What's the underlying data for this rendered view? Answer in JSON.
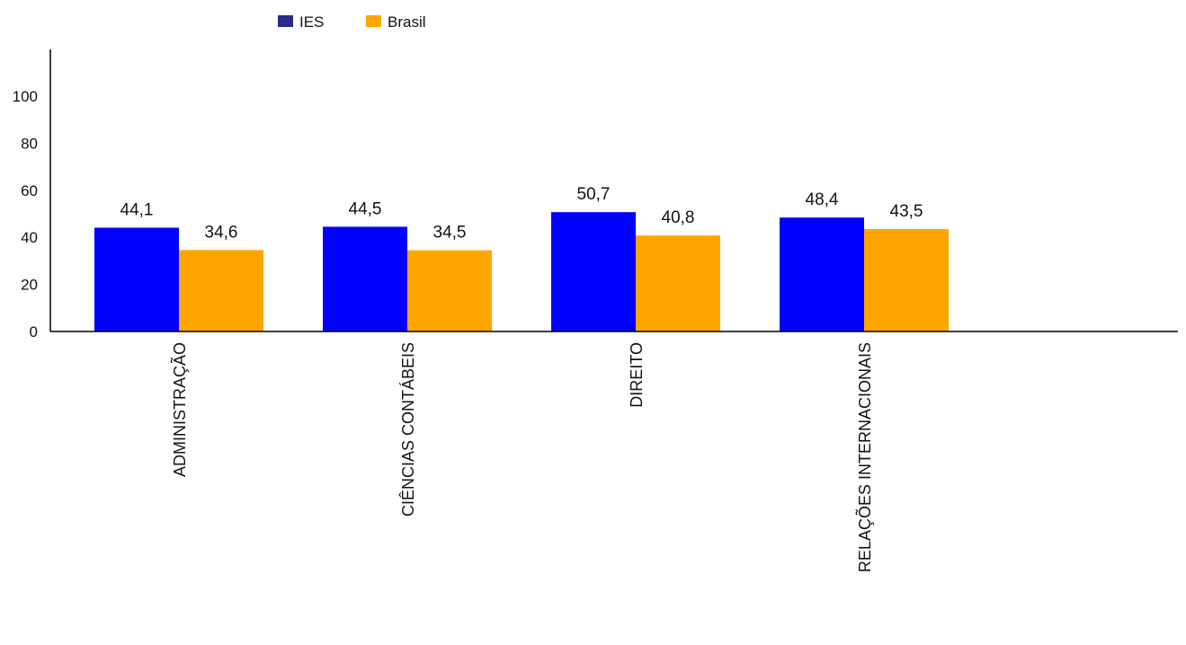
{
  "chart_data": {
    "type": "bar",
    "categories": [
      "ADMINISTRAÇÃO",
      "CIÊNCIAS CONTÁBEIS",
      "DIREITO",
      "RELAÇÕES INTERNACIONAIS"
    ],
    "series": [
      {
        "name": "IES",
        "values": [
          44.1,
          44.5,
          50.7,
          48.4
        ],
        "labels": [
          "44,1",
          "44,5",
          "50,7",
          "48,4"
        ],
        "color": "#0000FF",
        "legend_color": "#2B2B8C"
      },
      {
        "name": "Brasil",
        "values": [
          34.6,
          34.5,
          40.8,
          43.5
        ],
        "labels": [
          "34,6",
          "34,5",
          "40,8",
          "43,5"
        ],
        "color": "#FFA500",
        "legend_color": "#FFA500"
      }
    ],
    "yticks": [
      0,
      20,
      40,
      60,
      80,
      100
    ],
    "ylim": [
      0,
      120
    ],
    "legend_position": "top-left",
    "grid": false
  }
}
